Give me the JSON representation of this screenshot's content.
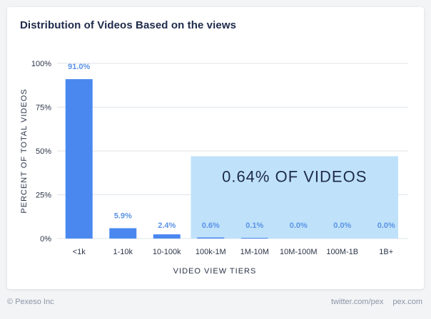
{
  "footer": {
    "copyright": "© Pexeso Inc",
    "links": [
      "twitter.com/pex",
      "pex.com"
    ]
  },
  "colors": {
    "bar": "#4a88f0",
    "label": "#5b93e6",
    "highlight": "#bfe2fa",
    "highlight_text": "#1e2a4a",
    "grid": "#dfe3ea",
    "text": "#2b3447"
  },
  "chart_data": {
    "type": "bar",
    "title": "Distribution of Videos Based on the views",
    "xlabel": "VIDEO VIEW TIERS",
    "ylabel": "PERCENT OF TOTAL VIDEOS",
    "categories": [
      "<1k",
      "1-10k",
      "10-100k",
      "100k-1M",
      "1M-10M",
      "10M-100M",
      "100M-1B",
      "1B+"
    ],
    "values": [
      91.0,
      5.9,
      2.4,
      0.6,
      0.1,
      0.0,
      0.0,
      0.0
    ],
    "value_labels": [
      "91.0%",
      "5.9%",
      "2.4%",
      "0.6%",
      "0.1%",
      "0.0%",
      "0.0%",
      "0.0%"
    ],
    "ylim": [
      0,
      100
    ],
    "yticks": [
      0,
      25,
      50,
      75,
      100
    ],
    "ytick_labels": [
      "0%",
      "25%",
      "50%",
      "75%",
      "100%"
    ],
    "grid": true,
    "annotation": {
      "text": "0.64% OF VIDEOS",
      "from_category": "100k-1M",
      "to_category": "1B+",
      "y_top": 47
    }
  }
}
